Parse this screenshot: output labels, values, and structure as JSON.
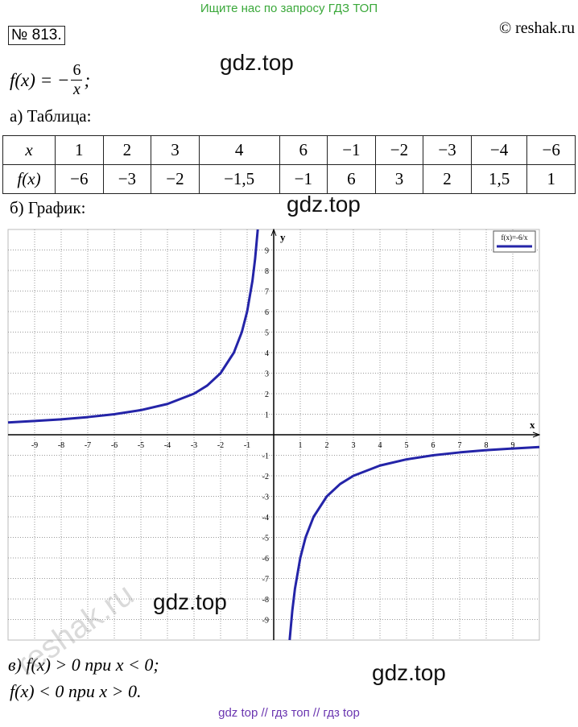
{
  "banner": "Ищите нас по запросу ГДЗ ТОП",
  "copyright": "© reshak.ru",
  "number": "№ 813.",
  "formula": {
    "lhs": "f(x) = −",
    "numerator": "6",
    "denominator": "x",
    "end": ";"
  },
  "table_heading": "а) Таблица:",
  "table": {
    "rows": [
      [
        "x",
        "1",
        "2",
        "3",
        "4",
        "6",
        "−1",
        "−2",
        "−3",
        "−4",
        "−6"
      ],
      [
        "f(x)",
        "−6",
        "−3",
        "−2",
        "−1,5",
        "−1",
        "6",
        "3",
        "2",
        "1,5",
        "1"
      ]
    ]
  },
  "graph_heading": "б) График:",
  "conclusion": [
    "в) f(x) > 0  при  x < 0;",
    "f(x) < 0  при  x > 0."
  ],
  "footer": "gdz top  //  гдз топ  //  гдз top",
  "watermarks": [
    "gdz.top",
    "gdz.top",
    "gdz.top",
    "gdz.top",
    "reshak.ru"
  ],
  "chart_data": {
    "type": "line",
    "x_label": "x",
    "y_label": "y",
    "xlim": [
      -10,
      10
    ],
    "ylim": [
      -10,
      10
    ],
    "xticks": [
      -9,
      -8,
      -7,
      -6,
      -5,
      -4,
      -3,
      -2,
      -1,
      1,
      2,
      3,
      4,
      5,
      6,
      7,
      8,
      9
    ],
    "yticks": [
      -9,
      -8,
      -7,
      -6,
      -5,
      -4,
      -3,
      -2,
      -1,
      1,
      2,
      3,
      4,
      5,
      6,
      7,
      8,
      9
    ],
    "grid": true,
    "legend": "upper right",
    "x": [
      -10,
      -9,
      -8,
      -7,
      -6,
      -5,
      -4,
      -3,
      -2.5,
      -2,
      -1.5,
      -1.2,
      -1,
      -0.8,
      -0.7,
      -0.6,
      0,
      0.6,
      0.7,
      0.8,
      1,
      1.2,
      1.5,
      2,
      2.5,
      3,
      4,
      5,
      6,
      7,
      8,
      9,
      10
    ],
    "series": [
      {
        "name": "f(x)=-6/x",
        "color": "#2424a8",
        "values": [
          0.6,
          0.67,
          0.75,
          0.86,
          1,
          1.2,
          1.5,
          2,
          2.4,
          3,
          4,
          5,
          6,
          7.5,
          8.57,
          10,
          null,
          -10,
          -8.57,
          -7.5,
          -6,
          -5,
          -4,
          -3,
          -2.4,
          -2,
          -1.5,
          -1.2,
          -1,
          -0.86,
          -0.75,
          -0.67,
          -0.6
        ]
      }
    ]
  }
}
